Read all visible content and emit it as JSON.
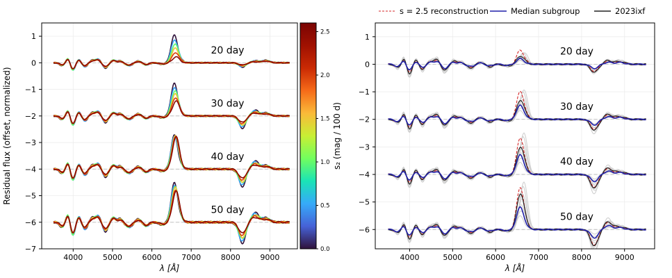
{
  "chart_data": [
    {
      "type": "line",
      "panel": "left",
      "xlabel": "λ [Å]",
      "ylabel": "Residual flux (offset, normalized)",
      "xlim": [
        3200,
        9700
      ],
      "ylim": [
        -7,
        1.5
      ],
      "xticks": [
        4000,
        5000,
        6000,
        7000,
        8000,
        9000
      ],
      "yticks": [
        -7,
        -6,
        -5,
        -4,
        -3,
        -2,
        -1,
        0,
        1
      ],
      "grid": true,
      "epochs": [
        {
          "label": "20 day",
          "offset": 0,
          "halpha_peak_min": 0.22,
          "halpha_peak_max": 1.02,
          "trough_depth": 0.12
        },
        {
          "label": "30 day",
          "offset": -2,
          "halpha_peak_min": 0.55,
          "halpha_peak_max": 1.2,
          "trough_depth": 0.35
        },
        {
          "label": "40 day",
          "offset": -4,
          "halpha_peak_min": 1.2,
          "halpha_peak_max": 1.25,
          "trough_depth": 0.5
        },
        {
          "label": "50 day",
          "offset": -6,
          "halpha_peak_min": 1.15,
          "halpha_peak_max": 1.45,
          "trough_depth": 0.6
        }
      ],
      "series_s2_values": [
        0.0,
        0.5,
        1.0,
        1.5,
        2.0,
        2.5
      ],
      "colorbar": {
        "label": "s₂ (mag / 100 d)",
        "range": [
          0.0,
          2.6
        ],
        "ticks": [
          "0.0",
          "0.5",
          "1.0",
          "1.5",
          "2.0",
          "2.5"
        ],
        "colormap": "turbo"
      }
    },
    {
      "type": "line",
      "panel": "right",
      "xlabel": "λ [Å]",
      "xlim": [
        3200,
        9700
      ],
      "ylim": [
        -6.7,
        1.5
      ],
      "xticks": [
        4000,
        5000,
        6000,
        7000,
        8000,
        9000
      ],
      "yticks": [
        -6,
        -5,
        -4,
        -3,
        -2,
        -1,
        0,
        1
      ],
      "grid": true,
      "legend": {
        "placement": "top (outside)",
        "entries": [
          {
            "label": "s = 2.5 reconstruction",
            "style": "dashed",
            "color": "#d62728"
          },
          {
            "label": "Median subgroup",
            "style": "solid",
            "color": "#1f1fa8"
          },
          {
            "label": "2023ixf",
            "style": "solid",
            "color": "#222222"
          }
        ]
      },
      "epochs": [
        {
          "label": "20 day",
          "offset": 0,
          "median_peak": 0.2,
          "recon_peak": 0.5,
          "sn2023ixf_peak": 0.3
        },
        {
          "label": "30 day",
          "offset": -2,
          "median_peak": 0.5,
          "recon_peak": 1.0,
          "sn2023ixf_peak": 0.7
        },
        {
          "label": "40 day",
          "offset": -4,
          "median_peak": 0.7,
          "recon_peak": 1.3,
          "sn2023ixf_peak": 1.0
        },
        {
          "label": "50 day",
          "offset": -6,
          "median_peak": 0.8,
          "recon_peak": 1.5,
          "sn2023ixf_peak": 1.3
        }
      ],
      "background_sample_color": "#c8c8c8"
    }
  ]
}
